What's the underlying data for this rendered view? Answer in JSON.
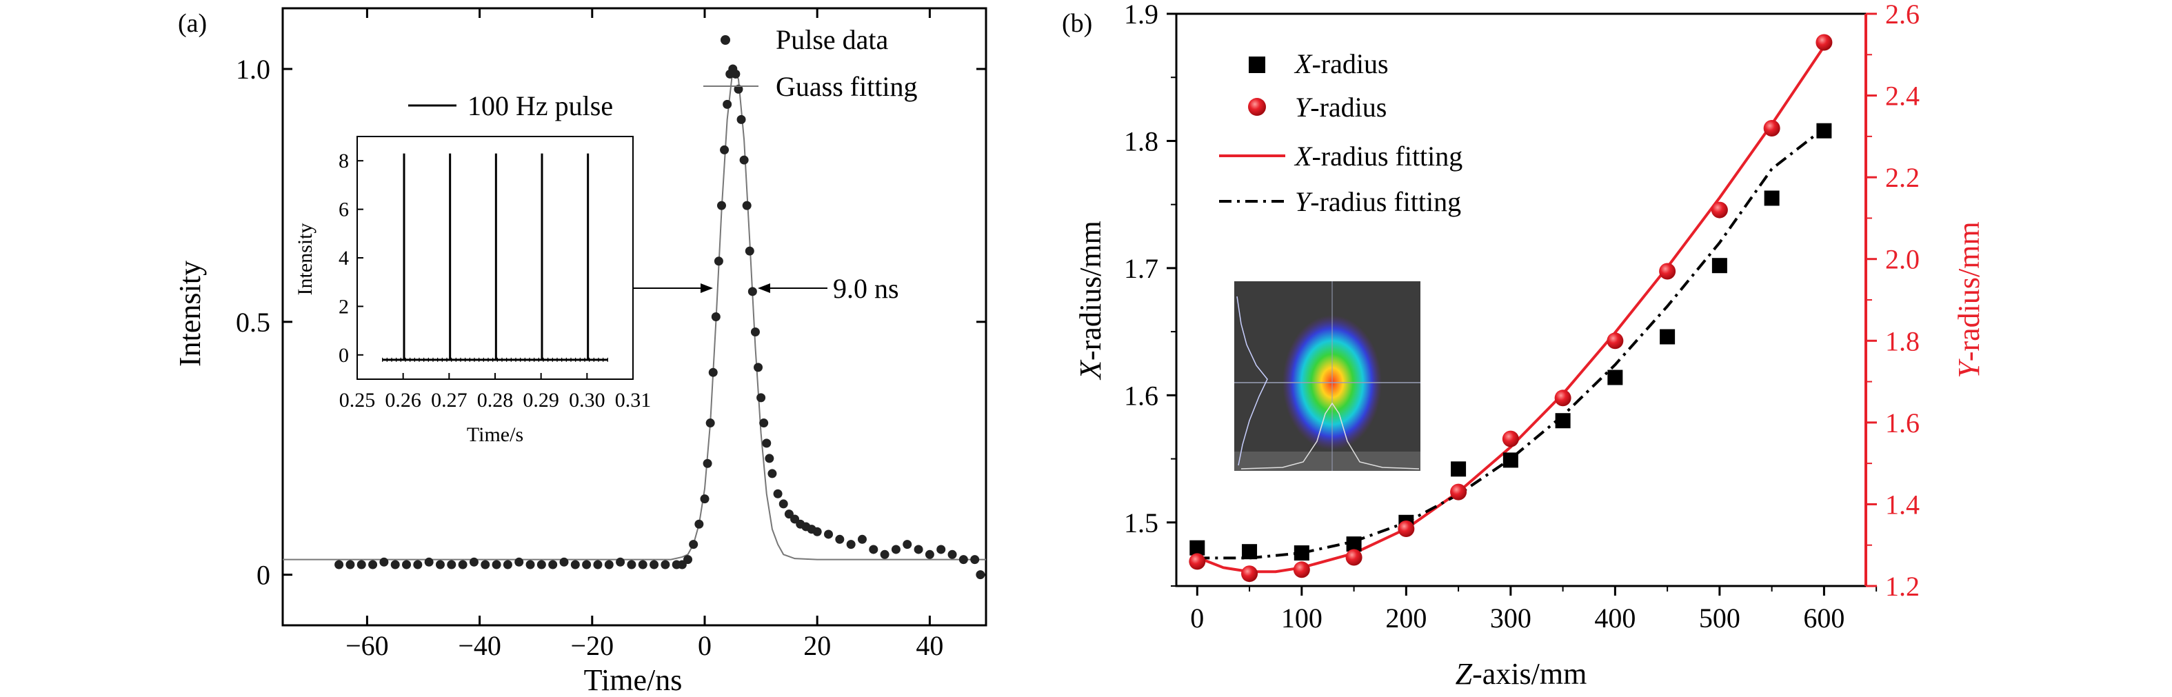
{
  "chart_data": [
    {
      "type": "scatter",
      "panel_label": "(a)",
      "xlabel": "Time/ns",
      "ylabel": "Intensity",
      "xlim": [
        -75,
        50
      ],
      "ylim": [
        -0.1,
        1.12
      ],
      "x_ticks": [
        -60,
        -40,
        -20,
        0,
        20,
        40
      ],
      "y_ticks": [
        0,
        0.5,
        1.0
      ],
      "y_tick_labels": [
        "0",
        "0.5",
        "1.0"
      ],
      "grid": false,
      "legend": {
        "placement": "top-right",
        "entries": [
          "Pulse data",
          "Guass fitting"
        ]
      },
      "series": [
        {
          "name": "Pulse data",
          "style": "dots",
          "x": [
            -65,
            -63,
            -61,
            -59,
            -57,
            -55,
            -53,
            -51,
            -49,
            -47,
            -45,
            -43,
            -41,
            -39,
            -37,
            -35,
            -33,
            -31,
            -29,
            -27,
            -25,
            -23,
            -21,
            -19,
            -17,
            -15,
            -13,
            -11,
            -9,
            -7,
            -5,
            -4,
            -3,
            -2,
            -1,
            0,
            0.5,
            1,
            1.5,
            2,
            2.5,
            3,
            3.5,
            4,
            4.5,
            5,
            5.5,
            6,
            6.5,
            7,
            7.5,
            8,
            8.5,
            9,
            9.5,
            10,
            10.5,
            11,
            11.5,
            12,
            13,
            14,
            15,
            16,
            17,
            18,
            19,
            20,
            22,
            24,
            26,
            28,
            30,
            32,
            34,
            36,
            38,
            40,
            42,
            44,
            46,
            48,
            49
          ],
          "y": [
            0.02,
            0.02,
            0.02,
            0.02,
            0.025,
            0.02,
            0.02,
            0.02,
            0.025,
            0.02,
            0.02,
            0.02,
            0.025,
            0.02,
            0.02,
            0.02,
            0.025,
            0.02,
            0.02,
            0.02,
            0.025,
            0.02,
            0.02,
            0.02,
            0.02,
            0.025,
            0.02,
            0.02,
            0.02,
            0.02,
            0.02,
            0.02,
            0.03,
            0.06,
            0.1,
            0.15,
            0.22,
            0.3,
            0.4,
            0.51,
            0.62,
            0.73,
            0.84,
            0.93,
            0.99,
            1.0,
            0.99,
            0.96,
            0.9,
            0.82,
            0.73,
            0.64,
            0.56,
            0.48,
            0.41,
            0.35,
            0.3,
            0.26,
            0.23,
            0.2,
            0.16,
            0.14,
            0.12,
            0.11,
            0.1,
            0.095,
            0.09,
            0.085,
            0.08,
            0.07,
            0.06,
            0.07,
            0.05,
            0.04,
            0.05,
            0.06,
            0.05,
            0.04,
            0.05,
            0.04,
            0.03,
            0.03,
            0.0
          ]
        },
        {
          "name": "Guass fitting",
          "style": "thin-line",
          "x": [
            -75,
            -10,
            -6,
            -4,
            -3,
            -2,
            -1,
            0,
            1,
            2,
            3,
            4,
            5,
            6,
            7,
            8,
            9,
            10,
            11,
            12,
            13,
            14,
            16,
            20,
            50
          ],
          "y": [
            0.03,
            0.03,
            0.03,
            0.035,
            0.04,
            0.06,
            0.1,
            0.17,
            0.3,
            0.5,
            0.72,
            0.9,
            1.0,
            0.98,
            0.86,
            0.66,
            0.45,
            0.28,
            0.16,
            0.09,
            0.06,
            0.04,
            0.032,
            0.03,
            0.03
          ]
        }
      ],
      "annotations": {
        "fwhm": "9.0 ns"
      },
      "inset": {
        "type": "line",
        "xlabel": "Time/s",
        "ylabel": "Intensity",
        "xlim": [
          0.25,
          0.31
        ],
        "ylim": [
          -1,
          9
        ],
        "x_ticks": [
          0.25,
          0.26,
          0.27,
          0.28,
          0.29,
          0.3,
          0.31
        ],
        "x_tick_labels": [
          "0.25",
          "0.26",
          "0.27",
          "0.28",
          "0.29",
          "0.30",
          "0.31"
        ],
        "y_ticks": [
          0,
          2,
          4,
          6,
          8
        ],
        "legend": {
          "placement": "top",
          "entries": [
            "100 Hz pulse"
          ]
        },
        "series": [
          {
            "name": "100 Hz pulse",
            "baseline": -0.2,
            "x_range": [
              0.2555,
              0.3045
            ],
            "peaks_x": [
              0.2602,
              0.2702,
              0.2802,
              0.2902,
              0.3002
            ],
            "peak_value": 8.3
          }
        ]
      }
    },
    {
      "type": "scatter",
      "panel_label": "(b)",
      "xlabel": "Z-axis/mm",
      "ylabel": "X-radius/mm",
      "y2label": "Y-radius/mm",
      "xlim": [
        -20,
        640
      ],
      "ylim": [
        1.45,
        1.9
      ],
      "y2lim": [
        1.2,
        2.6
      ],
      "x_ticks": [
        0,
        100,
        200,
        300,
        400,
        500,
        600
      ],
      "y_ticks": [
        1.5,
        1.6,
        1.7,
        1.8,
        1.9
      ],
      "y2_ticks": [
        1.2,
        1.4,
        1.6,
        1.8,
        2.0,
        2.2,
        2.4,
        2.6
      ],
      "y2_tick_labels": [
        "1.2",
        "1.4",
        "1.6",
        "1.8",
        "2.0",
        "2.2",
        "2.4",
        "2.6"
      ],
      "grid": false,
      "colors": {
        "y_radius": "#e8202a",
        "x_radius": "#000000"
      },
      "legend": {
        "placement": "top-left",
        "entries": [
          "X-radius",
          "Y-radius",
          "X-radius fitting",
          "Y-radius fitting"
        ]
      },
      "series": [
        {
          "name": "X-radius",
          "axis": "left",
          "marker": "square",
          "x": [
            0,
            50,
            100,
            150,
            200,
            250,
            300,
            350,
            400,
            450,
            500,
            550,
            600
          ],
          "y": [
            1.48,
            1.477,
            1.476,
            1.483,
            1.5,
            1.542,
            1.549,
            1.58,
            1.614,
            1.646,
            1.702,
            1.755,
            1.808
          ]
        },
        {
          "name": "Y-radius",
          "axis": "right",
          "marker": "circle",
          "x": [
            0,
            50,
            100,
            150,
            200,
            250,
            300,
            350,
            400,
            450,
            500,
            550,
            600
          ],
          "y": [
            1.26,
            1.23,
            1.24,
            1.27,
            1.34,
            1.43,
            1.56,
            1.66,
            1.8,
            1.97,
            2.12,
            2.32,
            2.53
          ]
        },
        {
          "name": "X-radius fitting",
          "axis": "right",
          "style": "solid",
          "x": [
            0,
            25,
            50,
            75,
            100,
            150,
            200,
            250,
            300,
            350,
            400,
            450,
            500,
            550,
            600
          ],
          "y": [
            1.27,
            1.245,
            1.235,
            1.235,
            1.245,
            1.28,
            1.34,
            1.43,
            1.54,
            1.67,
            1.82,
            1.98,
            2.15,
            2.33,
            2.52
          ]
        },
        {
          "name": "Y-radius fitting",
          "axis": "left",
          "style": "dash-dot",
          "x": [
            0,
            50,
            100,
            150,
            200,
            250,
            300,
            350,
            400,
            450,
            500,
            550,
            600
          ],
          "y": [
            1.472,
            1.472,
            1.476,
            1.485,
            1.5,
            1.522,
            1.55,
            1.584,
            1.624,
            1.67,
            1.72,
            1.778,
            1.81
          ]
        }
      ]
    }
  ]
}
